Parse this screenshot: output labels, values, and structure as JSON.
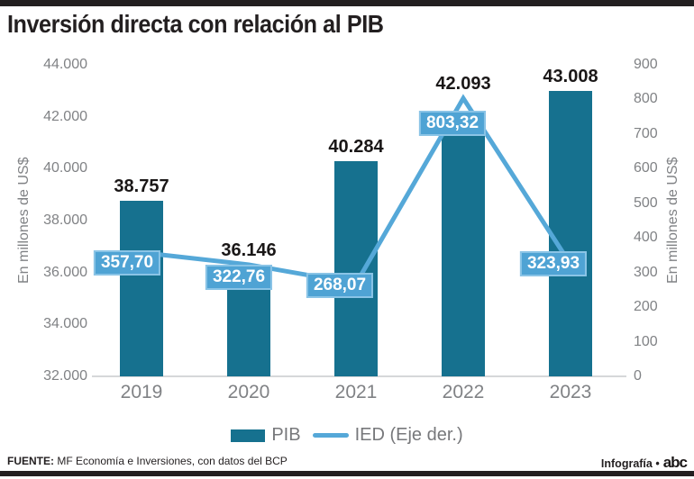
{
  "title": "Inversión directa con relación al PIB",
  "colors": {
    "bar": "#16718f",
    "line": "#55a8d8",
    "point_label_bg": "#4fa3d4",
    "title_text": "#231f20",
    "axis_text": "#808285"
  },
  "chart_data": {
    "type": "combo-bar-line",
    "categories": [
      "2019",
      "2020",
      "2021",
      "2022",
      "2023"
    ],
    "series": [
      {
        "name": "PIB",
        "type": "bar",
        "axis": "left",
        "values": [
          38757,
          36146,
          40284,
          42093,
          43008
        ],
        "labels": [
          "38.757",
          "36.146",
          "40.284",
          "42.093",
          "43.008"
        ]
      },
      {
        "name": "IED (Eje der.)",
        "type": "line",
        "axis": "right",
        "values": [
          357.7,
          322.76,
          268.07,
          803.32,
          323.93
        ],
        "labels": [
          "357,70",
          "322,76",
          "268,07",
          "803,32",
          "323,93"
        ]
      }
    ],
    "left_axis": {
      "title": "En millones de US$",
      "min": 32000,
      "max": 44000,
      "tick_values": [
        44000,
        42000,
        40000,
        38000,
        36000,
        34000,
        32000
      ],
      "tick_labels": [
        "44.000",
        "42.000",
        "40.000",
        "38.000",
        "36.000",
        "34.000",
        "32.000"
      ]
    },
    "right_axis": {
      "title": "En millones de US$",
      "min": 0,
      "max": 900,
      "tick_values": [
        900,
        800,
        700,
        600,
        500,
        400,
        300,
        200,
        100,
        0
      ],
      "tick_labels": [
        "900",
        "800",
        "700",
        "600",
        "500",
        "400",
        "300",
        "200",
        "100",
        "0"
      ]
    },
    "grid": false,
    "legend_position": "bottom"
  },
  "footer": {
    "source_label": "FUENTE:",
    "source_text": " MF Economía e Inversiones, con datos del BCP",
    "credit": "Infografía •",
    "logo": "abc"
  }
}
